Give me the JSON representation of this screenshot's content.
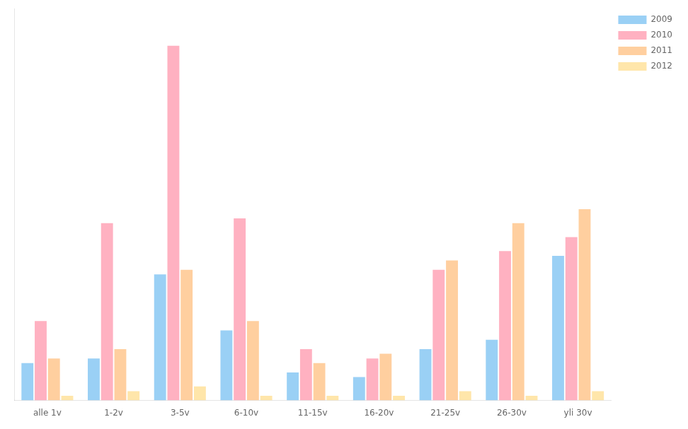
{
  "chart_data": {
    "type": "bar",
    "categories": [
      "alle 1v",
      "1-2v",
      "3-5v",
      "6-10v",
      "11-15v",
      "16-20v",
      "21-25v",
      "26-30v",
      "yli 30v"
    ],
    "series": [
      {
        "name": "2009",
        "values": [
          4.0,
          4.5,
          13.5,
          7.5,
          3.0,
          2.5,
          5.5,
          6.5,
          15.5
        ]
      },
      {
        "name": "2010",
        "values": [
          8.5,
          19.0,
          38.0,
          19.5,
          5.5,
          4.5,
          14.0,
          16.0,
          17.5
        ]
      },
      {
        "name": "2011",
        "values": [
          4.5,
          5.5,
          14.0,
          8.5,
          4.0,
          5.0,
          15.0,
          19.0,
          20.5
        ]
      },
      {
        "name": "2012",
        "values": [
          0.5,
          1.0,
          1.5,
          0.5,
          0.5,
          0.5,
          1.0,
          0.5,
          1.0
        ]
      }
    ],
    "ylim": [
      0,
      42
    ],
    "grid": false,
    "legend": "upper right",
    "tick_labels": "x"
  }
}
